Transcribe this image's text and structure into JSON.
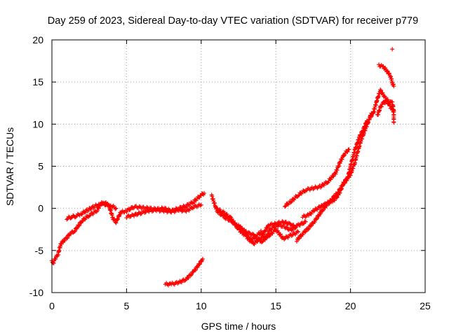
{
  "chart_data": {
    "type": "scatter",
    "title": "Day 259 of 2023, Sidereal Day-to-day VTEC variation (SDTVAR) for receiver p779",
    "xlabel": "GPS time / hours",
    "ylabel": "SDTVAR / TECUs",
    "xlim": [
      0,
      25
    ],
    "ylim": [
      -10,
      20
    ],
    "xticks": [
      0,
      5,
      10,
      15,
      20,
      25
    ],
    "yticks": [
      -10,
      -5,
      0,
      5,
      10,
      15,
      20
    ],
    "grid": true,
    "marker": "+",
    "color": "#ff0000",
    "series": [
      {
        "name": "track-1",
        "points": [
          [
            0.0,
            -6.2
          ],
          [
            0.1,
            -6.5
          ],
          [
            0.2,
            -6.0
          ],
          [
            0.4,
            -5.5
          ],
          [
            0.6,
            -4.2
          ],
          [
            0.8,
            -3.8
          ],
          [
            1.0,
            -3.5
          ],
          [
            1.2,
            -3.0
          ],
          [
            1.5,
            -2.7
          ],
          [
            1.8,
            -2.0
          ],
          [
            2.0,
            -1.5
          ],
          [
            2.5,
            -0.8
          ],
          [
            3.0,
            -0.3
          ],
          [
            3.3,
            0.6
          ],
          [
            3.6,
            0.5
          ],
          [
            4.0,
            0.3
          ],
          [
            4.3,
            0.0
          ]
        ]
      },
      {
        "name": "track-2",
        "points": [
          [
            1.0,
            -1.2
          ],
          [
            1.3,
            -1.0
          ],
          [
            1.6,
            -0.9
          ],
          [
            2.0,
            -0.6
          ],
          [
            2.4,
            -0.2
          ],
          [
            2.8,
            0.2
          ],
          [
            3.2,
            0.5
          ],
          [
            3.5,
            0.7
          ],
          [
            3.8,
            0.4
          ],
          [
            4.1,
            -1.2
          ],
          [
            4.3,
            -1.6
          ],
          [
            4.6,
            -0.5
          ],
          [
            5.0,
            -0.3
          ],
          [
            5.5,
            0.2
          ],
          [
            6.0,
            0.1
          ],
          [
            6.5,
            0.0
          ],
          [
            7.0,
            -0.1
          ],
          [
            7.5,
            0.0
          ],
          [
            8.0,
            -0.3
          ],
          [
            8.5,
            0.0
          ],
          [
            9.0,
            0.3
          ],
          [
            9.5,
            0.8
          ],
          [
            10.0,
            1.6
          ],
          [
            10.2,
            1.8
          ]
        ]
      },
      {
        "name": "track-3",
        "points": [
          [
            5.0,
            -1.0
          ],
          [
            5.5,
            -0.8
          ],
          [
            6.0,
            -0.5
          ],
          [
            6.5,
            -0.3
          ],
          [
            7.0,
            -0.2
          ],
          [
            7.5,
            -0.3
          ],
          [
            8.0,
            -0.4
          ],
          [
            8.5,
            -0.2
          ],
          [
            9.0,
            -0.3
          ],
          [
            9.5,
            0.2
          ],
          [
            10.0,
            0.4
          ]
        ]
      },
      {
        "name": "track-4",
        "points": [
          [
            7.6,
            -9.0
          ],
          [
            8.0,
            -9.0
          ],
          [
            8.5,
            -8.8
          ],
          [
            9.0,
            -8.4
          ],
          [
            9.5,
            -7.5
          ],
          [
            9.8,
            -6.8
          ],
          [
            10.1,
            -6.0
          ]
        ]
      },
      {
        "name": "track-5",
        "points": [
          [
            10.7,
            1.5
          ],
          [
            11.0,
            0.0
          ],
          [
            11.5,
            -0.5
          ],
          [
            12.0,
            -1.2
          ],
          [
            12.5,
            -2.5
          ],
          [
            13.0,
            -3.3
          ],
          [
            13.3,
            -3.9
          ],
          [
            13.6,
            -3.4
          ],
          [
            14.0,
            -2.8
          ],
          [
            14.3,
            -3.6
          ],
          [
            14.6,
            -2.6
          ],
          [
            15.0,
            -2.0
          ],
          [
            15.5,
            -2.1
          ],
          [
            16.0,
            -2.6
          ],
          [
            16.5,
            -2.0
          ],
          [
            17.0,
            -1.6
          ]
        ]
      },
      {
        "name": "track-6",
        "points": [
          [
            11.0,
            -0.2
          ],
          [
            11.5,
            -1.0
          ],
          [
            12.0,
            -1.5
          ],
          [
            12.5,
            -2.2
          ],
          [
            13.0,
            -2.8
          ],
          [
            13.5,
            -3.2
          ],
          [
            14.0,
            -4.0
          ],
          [
            14.5,
            -3.3
          ],
          [
            15.0,
            -2.5
          ],
          [
            15.5,
            -3.6
          ],
          [
            16.0,
            -3.2
          ],
          [
            16.5,
            -2.8
          ]
        ]
      },
      {
        "name": "track-7",
        "points": [
          [
            12.5,
            -2.0
          ],
          [
            13.0,
            -3.0
          ],
          [
            13.5,
            -4.2
          ],
          [
            14.0,
            -3.5
          ],
          [
            14.5,
            -2.0
          ],
          [
            15.0,
            -1.8
          ],
          [
            15.5,
            -1.6
          ],
          [
            16.0,
            -1.9
          ],
          [
            16.3,
            -2.2
          ]
        ]
      },
      {
        "name": "track-8",
        "points": [
          [
            15.6,
            0.3
          ],
          [
            16.0,
            0.8
          ],
          [
            16.5,
            1.6
          ],
          [
            17.0,
            2.2
          ],
          [
            17.5,
            2.4
          ],
          [
            18.0,
            2.6
          ],
          [
            18.5,
            3.2
          ],
          [
            19.0,
            4.2
          ],
          [
            19.3,
            5.5
          ],
          [
            19.6,
            6.5
          ],
          [
            19.9,
            7.0
          ]
        ]
      },
      {
        "name": "track-9",
        "points": [
          [
            16.4,
            -3.8
          ],
          [
            16.8,
            -3.0
          ],
          [
            17.2,
            -2.3
          ],
          [
            17.6,
            -1.5
          ],
          [
            18.0,
            -0.5
          ],
          [
            18.4,
            0.4
          ],
          [
            18.8,
            1.2
          ],
          [
            19.2,
            2.0
          ],
          [
            19.6,
            3.2
          ],
          [
            20.0,
            4.0
          ],
          [
            20.3,
            5.5
          ],
          [
            20.6,
            7.5
          ],
          [
            20.9,
            9.0
          ],
          [
            21.2,
            10.3
          ],
          [
            21.4,
            11.3
          ]
        ]
      },
      {
        "name": "track-10",
        "points": [
          [
            16.8,
            -1.0
          ],
          [
            17.2,
            -0.8
          ],
          [
            17.6,
            -0.2
          ],
          [
            18.0,
            0.2
          ],
          [
            18.4,
            0.6
          ],
          [
            18.8,
            0.8
          ],
          [
            19.2,
            1.6
          ],
          [
            19.5,
            2.8
          ],
          [
            19.8,
            3.5
          ],
          [
            20.0,
            5.0
          ],
          [
            20.3,
            7.0
          ],
          [
            20.6,
            8.5
          ],
          [
            20.9,
            9.5
          ],
          [
            21.1,
            10.4
          ]
        ]
      },
      {
        "name": "track-11",
        "points": [
          [
            21.3,
            10.8
          ],
          [
            21.5,
            11.2
          ],
          [
            21.8,
            13.0
          ],
          [
            22.0,
            14.0
          ],
          [
            22.3,
            13.2
          ],
          [
            22.6,
            12.2
          ],
          [
            22.9,
            11.5
          ],
          [
            22.9,
            10.2
          ]
        ]
      },
      {
        "name": "track-12",
        "points": [
          [
            21.8,
            11.0
          ],
          [
            22.0,
            12.0
          ],
          [
            22.2,
            12.5
          ],
          [
            22.5,
            12.8
          ],
          [
            22.8,
            12.5
          ],
          [
            22.9,
            11.6
          ]
        ]
      },
      {
        "name": "track-13",
        "points": [
          [
            21.9,
            17.0
          ],
          [
            22.2,
            16.8
          ],
          [
            22.5,
            16.2
          ],
          [
            22.7,
            15.6
          ],
          [
            22.8,
            14.9
          ],
          [
            22.9,
            14.5
          ]
        ]
      },
      {
        "name": "outlier",
        "points": [
          [
            22.8,
            18.9
          ]
        ]
      }
    ]
  }
}
